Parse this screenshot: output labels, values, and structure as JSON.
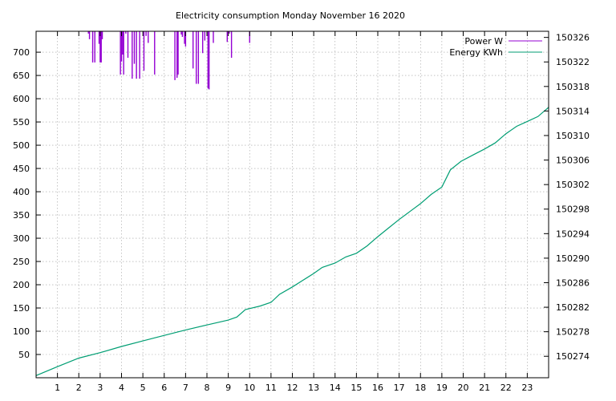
{
  "chart_data": {
    "type": "line",
    "title": "Electricity consumption Monday November 16 2020",
    "x": {
      "ticks": [
        1,
        2,
        3,
        4,
        5,
        6,
        7,
        8,
        9,
        10,
        11,
        12,
        13,
        14,
        15,
        16,
        17,
        18,
        19,
        20,
        21,
        22,
        23
      ],
      "range": [
        0,
        24
      ]
    },
    "y_left": {
      "ticks": [
        50,
        100,
        150,
        200,
        250,
        300,
        350,
        400,
        450,
        500,
        550,
        600,
        650,
        700
      ],
      "range": [
        0,
        745
      ]
    },
    "y_right": {
      "ticks": [
        150274,
        150278,
        150282,
        150286,
        150290,
        150294,
        150298,
        150302,
        150306,
        150310,
        150314,
        150318,
        150322,
        150326
      ],
      "range": [
        150270.5,
        150327
      ]
    },
    "grid": true,
    "legend": "top-right",
    "series": [
      {
        "name": "Power W",
        "axis": "left",
        "color": "#9400d3",
        "spikes": [
          [
            2.45,
            740
          ],
          [
            2.5,
            728
          ],
          [
            2.55,
            745
          ],
          [
            2.65,
            678
          ],
          [
            2.75,
            678
          ],
          [
            2.8,
            745
          ],
          [
            2.95,
            718
          ],
          [
            3.0,
            678
          ],
          [
            3.05,
            678
          ],
          [
            3.1,
            728
          ],
          [
            3.95,
            652
          ],
          [
            4.0,
            680
          ],
          [
            4.05,
            695
          ],
          [
            4.1,
            652
          ],
          [
            4.2,
            740
          ],
          [
            4.3,
            688
          ],
          [
            4.5,
            643
          ],
          [
            4.6,
            675
          ],
          [
            4.7,
            643
          ],
          [
            4.85,
            643
          ],
          [
            5.05,
            660
          ],
          [
            5.15,
            735
          ],
          [
            5.25,
            720
          ],
          [
            5.55,
            652
          ],
          [
            6.5,
            640
          ],
          [
            6.6,
            645
          ],
          [
            6.65,
            652
          ],
          [
            6.8,
            738
          ],
          [
            6.85,
            733
          ],
          [
            6.95,
            718
          ],
          [
            7.0,
            712
          ],
          [
            7.35,
            665
          ],
          [
            7.5,
            632
          ],
          [
            7.6,
            632
          ],
          [
            7.8,
            698
          ],
          [
            7.9,
            725
          ],
          [
            8.05,
            622
          ],
          [
            8.1,
            620
          ],
          [
            8.3,
            720
          ],
          [
            8.95,
            722
          ],
          [
            9.05,
            740
          ],
          [
            9.15,
            688
          ],
          [
            10.0,
            720
          ]
        ]
      },
      {
        "name": "Energy KWh",
        "axis": "right",
        "color": "#009e73",
        "points": [
          [
            0,
            150270.85
          ],
          [
            1,
            150272.3
          ],
          [
            2,
            150273.7
          ],
          [
            3,
            150274.6
          ],
          [
            4,
            150275.6
          ],
          [
            5,
            150276.5
          ],
          [
            6,
            150277.4
          ],
          [
            7,
            150278.3
          ],
          [
            8,
            150279.1
          ],
          [
            9,
            150279.9
          ],
          [
            9.4,
            150280.4
          ],
          [
            9.8,
            150281.6
          ],
          [
            10.5,
            150282.2
          ],
          [
            11,
            150282.8
          ],
          [
            11.4,
            150284.1
          ],
          [
            12,
            150285.3
          ],
          [
            12.5,
            150286.4
          ],
          [
            13,
            150287.5
          ],
          [
            13.4,
            150288.5
          ],
          [
            14,
            150289.2
          ],
          [
            14.5,
            150290.2
          ],
          [
            15,
            150290.8
          ],
          [
            15.5,
            150292
          ],
          [
            16,
            150293.5
          ],
          [
            16.5,
            150294.9
          ],
          [
            17,
            150296.3
          ],
          [
            17.5,
            150297.6
          ],
          [
            18,
            150298.9
          ],
          [
            18.5,
            150300.4
          ],
          [
            19,
            150301.6
          ],
          [
            19.4,
            150304.4
          ],
          [
            19.9,
            150305.8
          ],
          [
            20.5,
            150306.9
          ],
          [
            21,
            150307.8
          ],
          [
            21.5,
            150308.8
          ],
          [
            22,
            150310.3
          ],
          [
            22.5,
            150311.5
          ],
          [
            23,
            150312.3
          ],
          [
            23.5,
            150313.1
          ],
          [
            24,
            150314.6
          ]
        ]
      }
    ]
  }
}
